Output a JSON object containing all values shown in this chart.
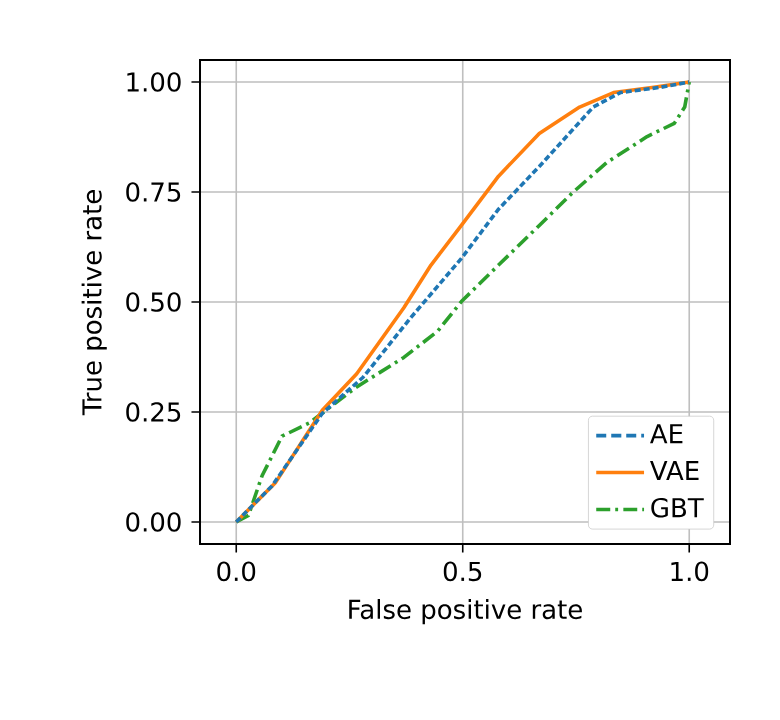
{
  "chart_data": {
    "type": "line",
    "xlabel": "False positive rate",
    "ylabel": "True positive rate",
    "xlim": [
      -0.08,
      1.09
    ],
    "ylim": [
      -0.05,
      1.05
    ],
    "xticks": [
      {
        "value": 0,
        "label": "0.0"
      },
      {
        "value": 0.5,
        "label": "0.5"
      },
      {
        "value": 1,
        "label": "1.0"
      }
    ],
    "yticks": [
      {
        "value": 0,
        "label": "0.00"
      },
      {
        "value": 0.25,
        "label": "0.25"
      },
      {
        "value": 0.5,
        "label": "0.50"
      },
      {
        "value": 0.75,
        "label": "0.75"
      },
      {
        "value": 1,
        "label": "1.00"
      }
    ],
    "grid": true,
    "legend": "bottom right",
    "series": [
      {
        "name": "AE",
        "color": "#1f77b4",
        "line_style": "dashed",
        "x": [
          0,
          0.079,
          0.19,
          0.28,
          0.385,
          0.497,
          0.579,
          0.669,
          0.788,
          0.848,
          0.937,
          1
        ],
        "values": [
          0,
          0.082,
          0.247,
          0.329,
          0.464,
          0.599,
          0.711,
          0.808,
          0.943,
          0.976,
          0.988,
          1
        ]
      },
      {
        "name": "VAE",
        "color": "#ff7f0e",
        "line_style": "solid",
        "x": [
          0,
          0.087,
          0.19,
          0.266,
          0.37,
          0.43,
          0.497,
          0.579,
          0.669,
          0.758,
          0.833,
          0.922,
          1
        ],
        "values": [
          0,
          0.09,
          0.254,
          0.337,
          0.487,
          0.584,
          0.674,
          0.786,
          0.883,
          0.943,
          0.976,
          0.988,
          1
        ]
      },
      {
        "name": "GBT",
        "color": "#2ca02c",
        "line_style": "dashdot",
        "x": [
          0,
          0.027,
          0.057,
          0.101,
          0.161,
          0.266,
          0.37,
          0.445,
          0.497,
          0.579,
          0.669,
          0.743,
          0.818,
          0.907,
          0.967,
          0.99,
          1
        ],
        "values": [
          0,
          0.015,
          0.105,
          0.195,
          0.225,
          0.307,
          0.374,
          0.434,
          0.501,
          0.584,
          0.674,
          0.749,
          0.817,
          0.876,
          0.906,
          0.943,
          1
        ]
      }
    ]
  }
}
